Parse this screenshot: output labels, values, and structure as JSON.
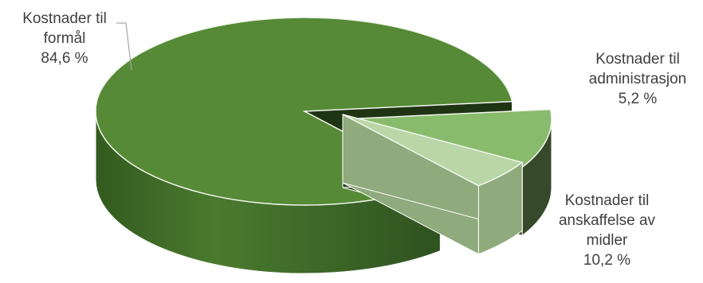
{
  "chart_data": {
    "type": "pie",
    "title": "",
    "three_d": true,
    "exploded": true,
    "slices": [
      {
        "label_lines": [
          "Kostnader til",
          "formål"
        ],
        "value": 84.6,
        "value_label": "84,6 %",
        "color": "#568a36",
        "side_color": "#3f6a26"
      },
      {
        "label_lines": [
          "Kostnader til",
          "administrasjon"
        ],
        "value": 5.2,
        "value_label": "5,2 %",
        "color": "#bad6a6",
        "side_color": "#8faa7c"
      },
      {
        "label_lines": [
          "Kostnader til",
          "anskaffelse av",
          "midler"
        ],
        "value": 10.2,
        "value_label": "10,2 %",
        "color": "#88bb6c",
        "side_color": "#36492b"
      }
    ]
  }
}
